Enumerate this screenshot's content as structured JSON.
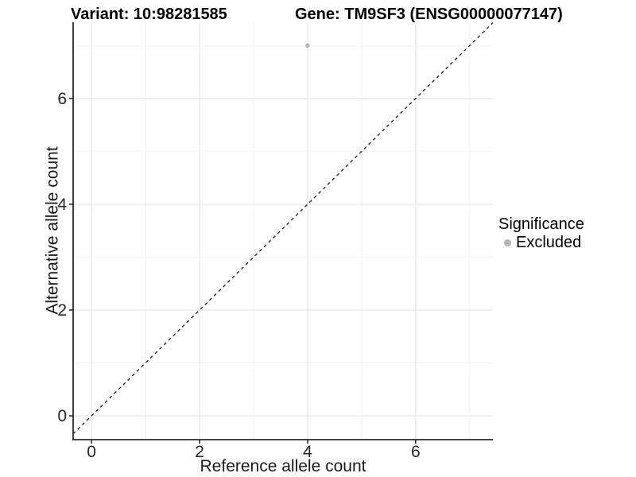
{
  "titles": {
    "variant": "Variant: 10:98281585",
    "gene": "Gene: TM9SF3 (ENSG00000077147)"
  },
  "legend": {
    "title": "Significance",
    "items": [
      {
        "label": "Excluded",
        "color": "#b5b5b5"
      }
    ]
  },
  "colors": {
    "background": "#ffffff",
    "grid_major": "#e3e3e3",
    "grid_minor": "#f0f0f0",
    "axis": "#2b2b2b",
    "reference_line": "#1a1a1a",
    "point_excluded": "#b5b5b5",
    "text": "#262626"
  },
  "chart_data": {
    "type": "scatter",
    "title": "Variant: 10:98281585   Gene: TM9SF3 (ENSG00000077147)",
    "xlabel": "Reference allele count",
    "ylabel": "Alternative allele count",
    "xlim": [
      -0.34,
      7.43
    ],
    "ylim": [
      -0.45,
      7.44
    ],
    "x_ticks": [
      0,
      2,
      4,
      6
    ],
    "y_ticks": [
      0,
      2,
      4,
      6
    ],
    "x_minor_ticks": [
      1,
      3,
      5,
      7
    ],
    "y_minor_ticks": [
      1,
      3,
      5,
      7
    ],
    "grid": "major+minor",
    "legend_position": "right",
    "legend_title": "Significance",
    "series": [
      {
        "name": "Excluded",
        "color": "#b5b5b5",
        "points": [
          {
            "x": 4,
            "y": 7
          }
        ]
      }
    ],
    "reference_line": {
      "type": "identity y=x",
      "style": "dashed",
      "color": "#1a1a1a"
    }
  }
}
